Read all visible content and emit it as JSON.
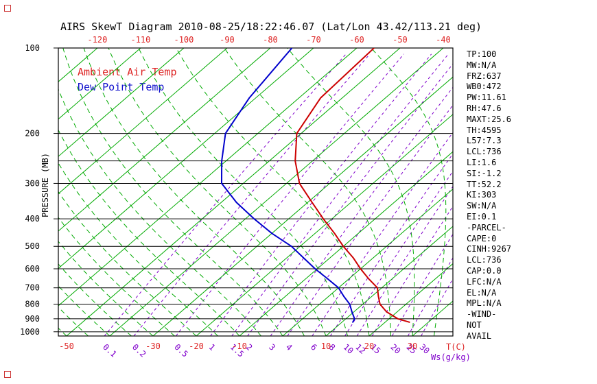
{
  "title": "AIRS SkewT Diagram 2010-08-25/18:22:46.07 (Lat/Lon 43.42/113.21 deg)",
  "legend": {
    "temp": "Ambient Air Temp",
    "dewpoint": "Dew Point Temp"
  },
  "axes": {
    "y_label": "PRESSURE (MB)",
    "x_label_temp": "T(C)",
    "x_label_mixratio": "Ws(g/kg)"
  },
  "stats": [
    "TP:100",
    "MW:N/A",
    "FRZ:637",
    "WB0:472",
    "PW:11.61",
    "RH:47.6",
    "MAXT:25.6",
    "TH:4595",
    "L57:7.3",
    "LCL:736",
    "LI:1.6",
    "SI:-1.2",
    "TT:52.2",
    "KI:303",
    "SW:N/A",
    "EI:0.1",
    "-PARCEL-",
    "CAPE:0",
    "CINH:9267",
    "LCL:736",
    "CAP:0.0",
    "LFC:N/A",
    "EL:N/A",
    "MPL:N/A",
    "-WIND-",
    "NOT",
    "AVAIL"
  ],
  "colors": {
    "isoline_green": "#00aa00",
    "mixing_ratio": "#8000cc",
    "temp_red": "#dd2222",
    "dewpoint_blue": "#1111cc",
    "frame_black": "#000000"
  },
  "chart_data": {
    "type": "line",
    "title": "AIRS SkewT Diagram 2010-08-25/18:22:46.07 (Lat/Lon 43.42/113.21 deg)",
    "x_axis": {
      "label": "T(C)",
      "skew": "skew-T (isotherms tilted 45deg)",
      "surface_tick_labels_c": [
        -50,
        -30,
        -20,
        -10,
        10,
        20,
        30
      ],
      "top_tick_labels_c": [
        -120,
        -110,
        -100,
        -90,
        -80,
        -70,
        -60,
        -50,
        -40
      ]
    },
    "y_axis": {
      "label": "PRESSURE (MB)",
      "scale": "log",
      "ticks_mb": [
        100,
        200,
        300,
        400,
        500,
        600,
        700,
        800,
        900,
        1000
      ],
      "range_mb": [
        100,
        1035
      ]
    },
    "background": {
      "isotherms_c": {
        "start": -130,
        "end": 40,
        "step": 10
      },
      "moist_adiabats_start_c": {
        "start": -70,
        "end": 40,
        "step": 5
      },
      "mixing_ratio_g_kg": [
        0.1,
        0.2,
        0.5,
        1,
        1.5,
        2,
        3,
        4,
        6,
        8,
        10,
        12,
        15,
        20,
        25,
        30
      ],
      "isobar_lines_mb": [
        200,
        250,
        300,
        400,
        500,
        600,
        700,
        800,
        900,
        1000
      ]
    },
    "series": [
      {
        "name": "Ambient Air Temp",
        "color": "#cc0000",
        "pressure_mb": [
          925,
          900,
          850,
          800,
          750,
          700,
          650,
          600,
          550,
          500,
          450,
          400,
          350,
          300,
          250,
          200,
          150,
          100
        ],
        "temperature_c": [
          25.6,
          22,
          17.5,
          14,
          11.5,
          9,
          4.5,
          0,
          -4.5,
          -10,
          -15.5,
          -22,
          -29,
          -37,
          -44,
          -51,
          -55,
          -56
        ]
      },
      {
        "name": "Dew Point Temp",
        "color": "#0000cc",
        "pressure_mb": [
          925,
          900,
          850,
          800,
          750,
          700,
          650,
          600,
          550,
          500,
          450,
          400,
          350,
          300,
          250,
          200,
          150,
          100
        ],
        "temperature_c": [
          12.5,
          12,
          9.5,
          7,
          3.5,
          0,
          -5,
          -10.5,
          -16,
          -22,
          -30,
          -38,
          -46.5,
          -55,
          -61,
          -67.5,
          -71.5,
          -75
        ]
      }
    ]
  }
}
